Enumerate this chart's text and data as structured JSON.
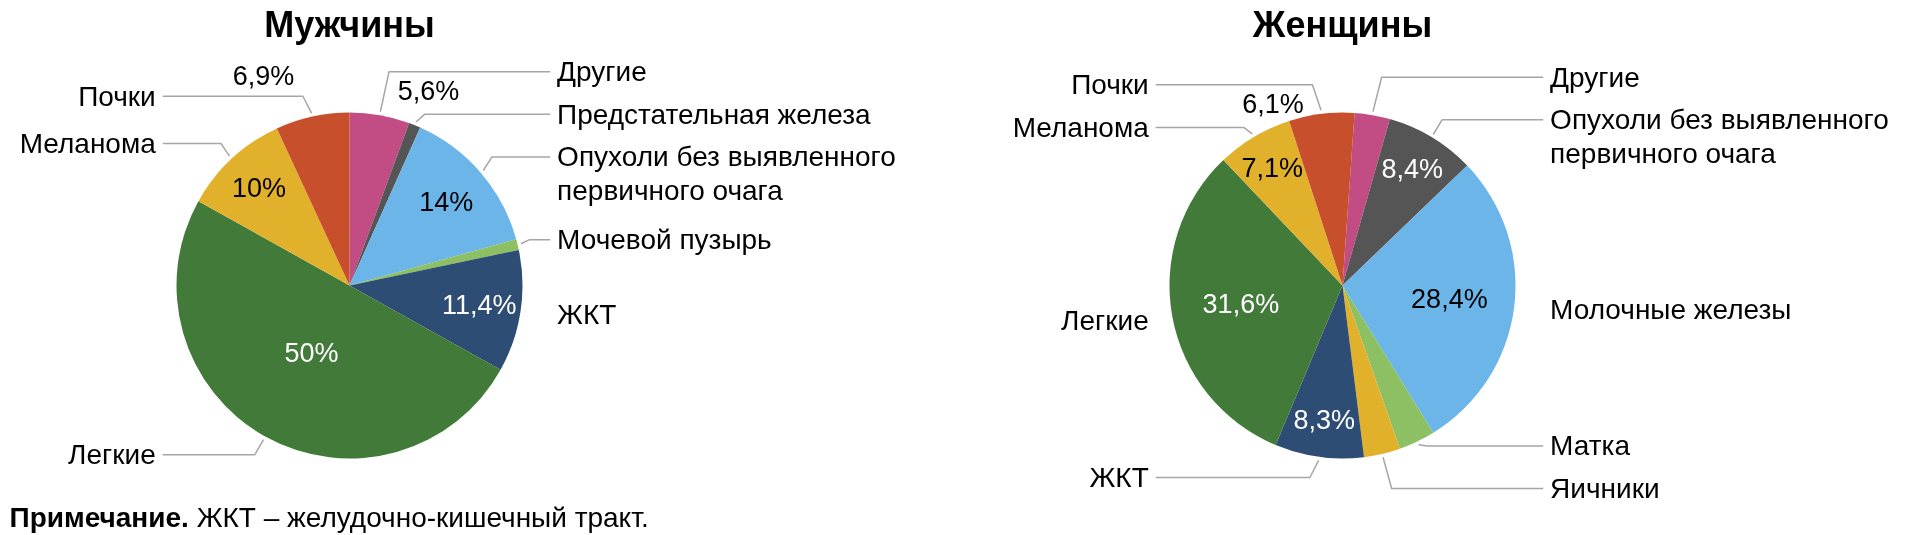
{
  "chart_data": [
    {
      "type": "pie",
      "title": "Мужчины",
      "categories": [
        "Другие",
        "Предстательная железа",
        "Опухоли без выявленного первичного очага",
        "Мочевой пузырь",
        "ЖКТ",
        "Легкие",
        "Меланома",
        "Почки"
      ],
      "values": [
        5.6,
        1.1,
        14,
        1.0,
        11.4,
        50,
        10,
        6.9
      ],
      "value_labels": [
        "5,6%",
        null,
        "14%",
        null,
        "11,4%",
        "50%",
        "10%",
        "6,9%"
      ],
      "colors": [
        "#c24c84",
        "#555555",
        "#6bb5e8",
        "#8dc063",
        "#2e4d74",
        "#427a39",
        "#e2b12b",
        "#c74f2b"
      ],
      "annotations": [
        "Примечание. ЖКТ – желудочно-кишечный тракт."
      ]
    },
    {
      "type": "pie",
      "title": "Женщины",
      "categories": [
        "Другие",
        "Опухоли без выявленного первичного очага",
        "Молочные железы",
        "Матка",
        "Яичники",
        "ЖКТ",
        "Легкие",
        "Меланома",
        "Почки"
      ],
      "values": [
        3.3,
        8.4,
        28.4,
        3.4,
        3.4,
        8.3,
        31.6,
        7.1,
        6.1
      ],
      "value_labels": [
        null,
        "8,4%",
        "28,4%",
        null,
        null,
        "8,3%",
        "31,6%",
        "7,1%",
        "6,1%"
      ],
      "colors": [
        "#c24c84",
        "#555555",
        "#6bb5e8",
        "#8dc063",
        "#e2b12b",
        "#2e4d74",
        "#427a39",
        "#e2b12b",
        "#c74f2b"
      ]
    }
  ]
}
